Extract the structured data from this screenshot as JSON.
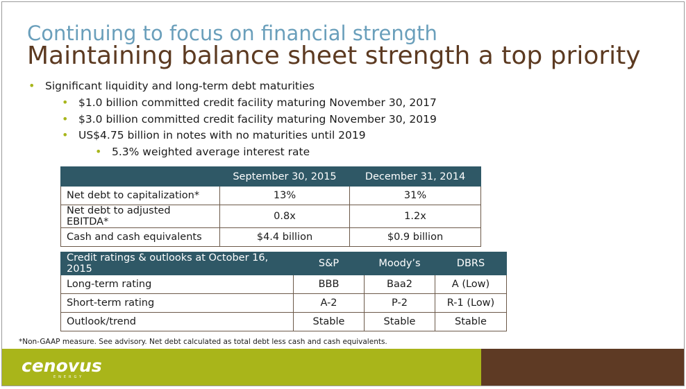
{
  "header": {
    "subtitle": "Continuing to focus on financial strength",
    "title": "Maintaining balance sheet strength a top priority"
  },
  "bullets": [
    {
      "level": 1,
      "text": "Significant liquidity and long-term debt maturities"
    },
    {
      "level": 2,
      "text": "$1.0 billion committed credit facility maturing November 30, 2017"
    },
    {
      "level": 2,
      "text": "$3.0 billion committed credit facility maturing November 30, 2019"
    },
    {
      "level": 2,
      "text": "US$4.75 billion in notes with no maturities until 2019"
    },
    {
      "level": 3,
      "text": "5.3% weighted average interest rate"
    }
  ],
  "debt_table": {
    "headers": [
      "",
      "September 30, 2015",
      "December 31, 2014"
    ],
    "rows": [
      [
        "Net debt to capitalization*",
        "13%",
        "31%"
      ],
      [
        "Net debt to adjusted EBITDA*",
        "0.8x",
        "1.2x"
      ],
      [
        "Cash and cash equivalents",
        "$4.4 billion",
        "$0.9 billion"
      ]
    ]
  },
  "ratings_table": {
    "headers": [
      "Credit ratings & outlooks at October 16, 2015",
      "S&P",
      "Moody’s",
      "DBRS"
    ],
    "rows": [
      [
        "Long-term rating",
        "BBB",
        "Baa2",
        "A (Low)"
      ],
      [
        "Short-term rating",
        "A-2",
        "P-2",
        "R-1 (Low)"
      ],
      [
        "Outlook/trend",
        "Stable",
        "Stable",
        "Stable"
      ]
    ]
  },
  "footnote": "*Non-GAAP measure. See advisory. Net debt calculated as total debt less cash and cash equivalents.",
  "logo": {
    "name": "cenovus",
    "tagline": "ENERGY"
  },
  "colors": {
    "subtitle": "#6a9fbb",
    "title": "#5c3a21",
    "bullet": "#a8b61c",
    "table_header": "#2f5866",
    "footer_green": "#a9b51a",
    "footer_brown": "#5e3a24"
  }
}
